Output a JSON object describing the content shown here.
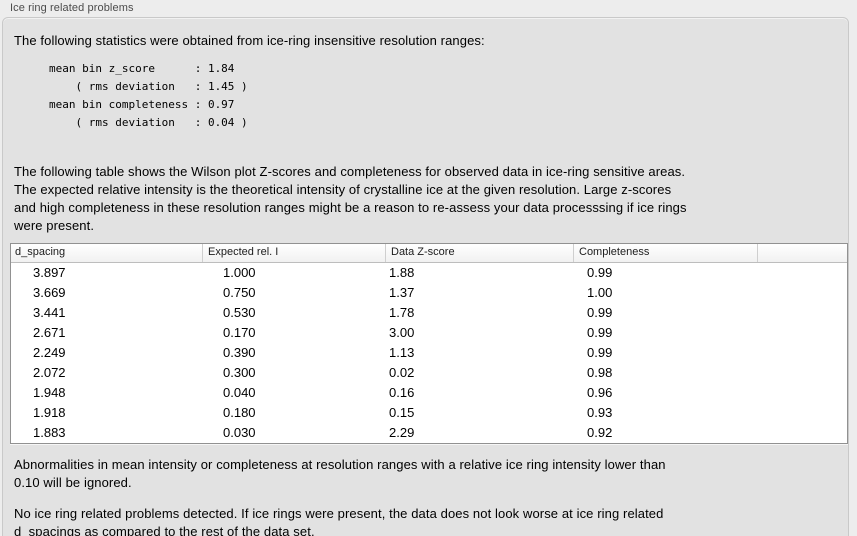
{
  "panel": {
    "title": "Ice ring related problems"
  },
  "intro": {
    "text": "The following statistics were obtained from ice-ring insensitive resolution ranges:"
  },
  "stats_block": {
    "text": "mean bin z_score      : 1.84\n    ( rms deviation   : 1.45 )\nmean bin completeness : 0.97\n    ( rms deviation   : 0.04 )"
  },
  "description": {
    "text": "The following table shows the Wilson plot Z-scores and completeness for observed data in ice-ring sensitive areas.\nThe expected relative intensity is the theoretical intensity of crystalline ice at the given resolution. Large z-scores\nand high completeness in these resolution ranges might be a reason to re-assess your data processsing if ice rings\nwere present."
  },
  "table": {
    "headers": [
      "d_spacing",
      "Expected rel. I",
      "Data Z-score",
      "Completeness",
      ""
    ],
    "rows": [
      [
        "3.897",
        "1.000",
        "1.88",
        "0.99"
      ],
      [
        "3.669",
        "0.750",
        "1.37",
        "1.00"
      ],
      [
        "3.441",
        "0.530",
        "1.78",
        "0.99"
      ],
      [
        "2.671",
        "0.170",
        "3.00",
        "0.99"
      ],
      [
        "2.249",
        "0.390",
        "1.13",
        "0.99"
      ],
      [
        "2.072",
        "0.300",
        "0.02",
        "0.98"
      ],
      [
        "1.948",
        "0.040",
        "0.16",
        "0.96"
      ],
      [
        "1.918",
        "0.180",
        "0.15",
        "0.93"
      ],
      [
        "1.883",
        "0.030",
        "2.29",
        "0.92"
      ]
    ]
  },
  "footnote": {
    "text": "Abnormalities in mean intensity or completeness at resolution ranges with a relative ice ring intensity lower than\n0.10 will be ignored."
  },
  "conclusion": {
    "text": "No ice ring related problems detected. If ice rings were present, the data does not look worse at ice ring related\nd_spacings as compared to the rest of the data set."
  },
  "colors": {
    "page_background": "#ededed",
    "box_background": "#e2e2e2",
    "box_border": "#c9c9c9",
    "table_background": "#ffffff",
    "table_border": "#919191",
    "header_separator": "#cfcfcf",
    "text": "#000000",
    "title_text": "#4c4c4c"
  }
}
